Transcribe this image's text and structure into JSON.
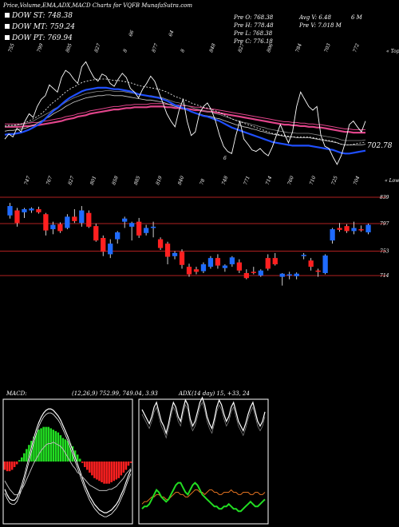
{
  "header": {
    "title": "Price,Volume,EMA,ADX,MACD Charts for VQFB MunafaSutra.com"
  },
  "legend": [
    {
      "label": "DOW ST:",
      "value": "748.38",
      "color": "#ffffff"
    },
    {
      "label": "DOW MT:",
      "value": "759.24",
      "color": "#ffffff"
    },
    {
      "label": "DOW PT:",
      "value": "769.94",
      "color": "#ffffff"
    }
  ],
  "stats": {
    "prev_open": "Pre  O: 768.38",
    "prev_high": "Pre  H: 778.48",
    "prev_low": "Pre  L: 768.38",
    "prev_close": "Pre  C: 776.18",
    "avg_volume": "Avg V: 6.48",
    "avg_volume_unit": "6  M",
    "prev_volume": "Pre  V: 7.018  M"
  },
  "colors": {
    "background": "#000000",
    "ema_short": "#1f4fff",
    "ema_long": "#e0448a",
    "price_line": "#ffffff",
    "bull_candle": "#1f6bff",
    "bear_candle": "#ff2020",
    "level_line": "#b02020",
    "macd_positive": "#22dd22",
    "macd_negative": "#ff2020",
    "adx_green": "#22dd22",
    "adx_orange": "#e07020"
  },
  "chart_data": [
    {
      "type": "line",
      "name": "price-ema-panel",
      "top_labels": [
        "755",
        "799",
        "805",
        "827",
        "8",
        "877",
        "8",
        "848",
        "827",
        "806",
        "784",
        "703",
        "772"
      ],
      "upper_labels": [
        "66",
        "64"
      ],
      "bottom_labels": [
        "747",
        "767",
        "827",
        "801",
        "858",
        "885",
        "819",
        "840",
        "78",
        "748",
        "771",
        "714",
        "760",
        "710",
        "725",
        "704"
      ],
      "price_tag": "702.78",
      "corner_top": "« Tops",
      "corner_bottom": "« Lows",
      "misc_label": "6",
      "x": [
        0,
        1,
        2,
        3,
        4,
        5,
        6,
        7,
        8,
        9,
        10,
        11,
        12,
        13,
        14,
        15,
        16,
        17,
        18,
        19,
        20,
        21,
        22,
        23,
        24,
        25,
        26,
        27,
        28,
        29,
        30,
        31,
        32,
        33,
        34,
        35,
        36,
        37,
        38,
        39,
        40,
        41,
        42,
        43,
        44,
        45,
        46,
        47,
        48,
        49,
        50,
        51,
        52,
        53,
        54,
        55,
        56,
        57,
        58,
        59,
        60,
        61,
        62,
        63,
        64,
        65,
        66,
        67,
        68,
        69,
        70,
        71,
        72,
        73,
        74,
        75,
        76,
        77,
        78,
        79,
        80,
        81,
        82,
        83,
        84,
        85,
        86,
        87,
        88,
        89
      ],
      "price": [
        735,
        742,
        738,
        750,
        745,
        760,
        770,
        765,
        780,
        790,
        795,
        810,
        805,
        800,
        820,
        830,
        826,
        818,
        812,
        835,
        842,
        830,
        820,
        815,
        825,
        822,
        812,
        808,
        818,
        826,
        820,
        805,
        800,
        792,
        804,
        812,
        822,
        815,
        800,
        785,
        770,
        760,
        752,
        775,
        790,
        760,
        740,
        745,
        770,
        780,
        785,
        775,
        760,
        740,
        725,
        718,
        715,
        740,
        760,
        735,
        728,
        720,
        718,
        722,
        716,
        712,
        724,
        740,
        755,
        742,
        730,
        745,
        780,
        800,
        790,
        780,
        775,
        780,
        740,
        725,
        722,
        710,
        700,
        712,
        730,
        755,
        760,
        752,
        745,
        760
      ],
      "ema_short": [
        741,
        742,
        742,
        743,
        744,
        746,
        748,
        751,
        754,
        758,
        763,
        769,
        774,
        778,
        783,
        788,
        792,
        795,
        798,
        801,
        803,
        804,
        805,
        806,
        806,
        806,
        805,
        804,
        804,
        803,
        802,
        801,
        799,
        797,
        796,
        795,
        794,
        793,
        792,
        790,
        788,
        785,
        782,
        780,
        778,
        776,
        773,
        771,
        769,
        767,
        766,
        764,
        762,
        760,
        757,
        754,
        751,
        749,
        747,
        745,
        743,
        741,
        739,
        737,
        735,
        733,
        731,
        730,
        729,
        728,
        727,
        726,
        726,
        726,
        726,
        726,
        725,
        724,
        723,
        722,
        721,
        720,
        718,
        716,
        715,
        715,
        716,
        717,
        718,
        719
      ],
      "ema_long": [
        752,
        752,
        752,
        752,
        752,
        753,
        753,
        754,
        754,
        755,
        756,
        757,
        758,
        759,
        760,
        762,
        763,
        764,
        766,
        767,
        768,
        770,
        771,
        772,
        773,
        774,
        775,
        776,
        776,
        777,
        778,
        778,
        779,
        779,
        779,
        779,
        780,
        780,
        780,
        780,
        779,
        779,
        778,
        778,
        777,
        777,
        776,
        775,
        775,
        774,
        773,
        773,
        772,
        771,
        770,
        769,
        768,
        767,
        766,
        765,
        764,
        763,
        762,
        761,
        760,
        759,
        758,
        757,
        756,
        755,
        755,
        754,
        754,
        753,
        753,
        752,
        752,
        751,
        751,
        750,
        749,
        748,
        747,
        746,
        745,
        745,
        744,
        744,
        744,
        744
      ],
      "ema_mid": [
        746,
        747,
        747,
        748,
        749,
        750,
        752,
        754,
        757,
        760,
        763,
        766,
        770,
        773,
        776,
        780,
        783,
        786,
        788,
        790,
        792,
        793,
        794,
        795,
        795,
        796,
        796,
        795,
        795,
        795,
        794,
        793,
        792,
        791,
        790,
        789,
        789,
        788,
        787,
        786,
        784,
        782,
        780,
        779,
        777,
        775,
        773,
        771,
        770,
        768,
        767,
        766,
        764,
        763,
        761,
        759,
        757,
        755,
        754,
        752,
        751,
        749,
        748,
        746,
        745,
        743,
        742,
        741,
        740,
        739,
        738,
        738,
        737,
        737,
        737,
        737,
        736,
        735,
        734,
        733,
        732,
        731,
        730,
        728,
        727,
        727,
        727,
        727,
        727,
        728
      ]
    },
    {
      "type": "bar",
      "name": "candlestick-panel",
      "levels": [
        839,
        797,
        753,
        714
      ],
      "ylim": [
        695,
        848
      ],
      "candles": [
        {
          "o": 810,
          "h": 830,
          "l": 805,
          "c": 825
        },
        {
          "o": 818,
          "h": 822,
          "l": 792,
          "c": 798
        },
        {
          "o": 815,
          "h": 822,
          "l": 806,
          "c": 820
        },
        {
          "o": 818,
          "h": 823,
          "l": 814,
          "c": 821
        },
        {
          "o": 820,
          "h": 824,
          "l": 813,
          "c": 815
        },
        {
          "o": 812,
          "h": 814,
          "l": 778,
          "c": 786
        },
        {
          "o": 788,
          "h": 800,
          "l": 780,
          "c": 795
        },
        {
          "o": 796,
          "h": 799,
          "l": 782,
          "c": 785
        },
        {
          "o": 790,
          "h": 812,
          "l": 788,
          "c": 808
        },
        {
          "o": 808,
          "h": 820,
          "l": 798,
          "c": 801
        },
        {
          "o": 798,
          "h": 825,
          "l": 792,
          "c": 818
        },
        {
          "o": 814,
          "h": 818,
          "l": 790,
          "c": 792
        },
        {
          "o": 793,
          "h": 797,
          "l": 768,
          "c": 770
        },
        {
          "o": 774,
          "h": 778,
          "l": 745,
          "c": 752
        },
        {
          "o": 748,
          "h": 772,
          "l": 742,
          "c": 765
        },
        {
          "o": 772,
          "h": 785,
          "l": 765,
          "c": 783
        },
        {
          "o": 800,
          "h": 808,
          "l": 790,
          "c": 805
        },
        {
          "o": 792,
          "h": 800,
          "l": 770,
          "c": 798
        },
        {
          "o": 800,
          "h": 806,
          "l": 774,
          "c": 778
        },
        {
          "o": 782,
          "h": 795,
          "l": 778,
          "c": 790
        },
        {
          "o": 790,
          "h": 800,
          "l": 775,
          "c": 792
        },
        {
          "o": 772,
          "h": 775,
          "l": 755,
          "c": 758
        },
        {
          "o": 765,
          "h": 768,
          "l": 732,
          "c": 744
        },
        {
          "o": 745,
          "h": 753,
          "l": 740,
          "c": 750
        },
        {
          "o": 752,
          "h": 756,
          "l": 725,
          "c": 731
        },
        {
          "o": 728,
          "h": 733,
          "l": 712,
          "c": 716
        },
        {
          "o": 724,
          "h": 728,
          "l": 716,
          "c": 720
        },
        {
          "o": 721,
          "h": 735,
          "l": 718,
          "c": 732
        },
        {
          "o": 728,
          "h": 745,
          "l": 725,
          "c": 742
        },
        {
          "o": 742,
          "h": 748,
          "l": 725,
          "c": 730
        },
        {
          "o": 726,
          "h": 732,
          "l": 720,
          "c": 730
        },
        {
          "o": 732,
          "h": 745,
          "l": 728,
          "c": 743
        },
        {
          "o": 735,
          "h": 740,
          "l": 718,
          "c": 722
        },
        {
          "o": 718,
          "h": 724,
          "l": 708,
          "c": 710
        },
        {
          "o": 720,
          "h": 728,
          "l": 716,
          "c": 719
        },
        {
          "o": 714,
          "h": 724,
          "l": 712,
          "c": 722
        },
        {
          "o": 742,
          "h": 748,
          "l": 722,
          "c": 725
        },
        {
          "o": 742,
          "h": 750,
          "l": 730,
          "c": 732
        },
        {
          "o": 712,
          "h": 718,
          "l": 698,
          "c": 717
        },
        {
          "o": 714,
          "h": 720,
          "l": 708,
          "c": 716
        },
        {
          "o": 713,
          "h": 719,
          "l": 708,
          "c": 717
        },
        {
          "o": 745,
          "h": 750,
          "l": 740,
          "c": 747
        },
        {
          "o": 738,
          "h": 742,
          "l": 722,
          "c": 728
        },
        {
          "o": 722,
          "h": 725,
          "l": 712,
          "c": 720
        },
        {
          "o": 718,
          "h": 748,
          "l": 716,
          "c": 746
        },
        {
          "o": 770,
          "h": 790,
          "l": 765,
          "c": 788
        },
        {
          "o": 790,
          "h": 798,
          "l": 784,
          "c": 787
        },
        {
          "o": 793,
          "h": 796,
          "l": 782,
          "c": 785
        },
        {
          "o": 785,
          "h": 800,
          "l": 780,
          "c": 790
        },
        {
          "o": 788,
          "h": 794,
          "l": 784,
          "c": 787
        },
        {
          "o": 783,
          "h": 797,
          "l": 780,
          "c": 795
        }
      ]
    },
    {
      "type": "bar",
      "name": "macd-panel",
      "title": "MACD:",
      "params": "(12,26,9) 752.99, 749.04, 3.93",
      "histogram": [
        -6,
        -7,
        -7,
        -6,
        -4,
        -2,
        1,
        3,
        6,
        9,
        12,
        15,
        18,
        21,
        23,
        24,
        25,
        25,
        25,
        24,
        23,
        22,
        21,
        19,
        17,
        16,
        15,
        13,
        11,
        8,
        5,
        2,
        -1,
        -4,
        -6,
        -8,
        -10,
        -12,
        -13,
        -14,
        -15,
        -16,
        -16,
        -16,
        -15,
        -14,
        -13,
        -12,
        -10,
        -8,
        -6,
        -3,
        -1
      ],
      "macd_line": [
        -20,
        -24,
        -27,
        -28,
        -28,
        -26,
        -22,
        -17,
        -11,
        -4,
        3,
        10,
        17,
        23,
        28,
        32,
        35,
        37,
        38,
        38,
        37,
        35,
        33,
        30,
        26,
        22,
        18,
        13,
        8,
        3,
        -2,
        -7,
        -12,
        -17,
        -21,
        -25,
        -28,
        -31,
        -33,
        -35,
        -36,
        -37,
        -37,
        -36,
        -35,
        -33,
        -31,
        -28,
        -24,
        -20,
        -15,
        -10,
        -6
      ],
      "signal_line": [
        -14,
        -17,
        -20,
        -22,
        -24,
        -24,
        -23,
        -20,
        -17,
        -13,
        -9,
        -5,
        -1,
        2,
        5,
        8,
        10,
        12,
        13,
        13,
        14,
        13,
        12,
        11,
        9,
        6,
        3,
        0,
        -3,
        -5,
        -8,
        -9,
        -11,
        -13,
        -15,
        -17,
        -18,
        -19,
        -20,
        -21,
        -21,
        -21,
        -21,
        -20,
        -20,
        -19,
        -18,
        -16,
        -14,
        -12,
        -9,
        -7,
        -5
      ],
      "ylim": [
        -45,
        45
      ]
    },
    {
      "type": "line",
      "name": "adx-panel",
      "title": "ADX",
      "params": "(14 day) 15, +33, 24",
      "plus_di": [
        32,
        30,
        28,
        26,
        29,
        33,
        35,
        31,
        27,
        25,
        22,
        26,
        31,
        35,
        33,
        29,
        27,
        32,
        36,
        34,
        28,
        25,
        27,
        31,
        35,
        37,
        34,
        29,
        26,
        24,
        28,
        33,
        36,
        34,
        30,
        27,
        29,
        33,
        35,
        31,
        27,
        25,
        23,
        26,
        30,
        33,
        35,
        31,
        27,
        25,
        27,
        31
      ],
      "minus_di": [
        18,
        20,
        22,
        24,
        21,
        17,
        15,
        19,
        23,
        25,
        28,
        24,
        19,
        15,
        17,
        21,
        23,
        18,
        14,
        16,
        22,
        25,
        23,
        19,
        15,
        13,
        16,
        21,
        24,
        26,
        22,
        17,
        14,
        16,
        20,
        23,
        21,
        17,
        15,
        19,
        23,
        25,
        27,
        24,
        20,
        17,
        15,
        19,
        23,
        25,
        23,
        19
      ],
      "adx_orange": [
        7,
        8,
        8,
        9,
        10,
        10,
        11,
        11,
        10,
        10,
        9,
        9,
        10,
        11,
        12,
        12,
        11,
        11,
        10,
        10,
        11,
        12,
        13,
        13,
        12,
        12,
        11,
        12,
        13,
        13,
        12,
        12,
        11,
        11,
        12,
        12,
        12,
        13,
        12,
        12,
        11,
        11,
        12,
        12,
        12,
        11,
        11,
        12,
        12,
        11,
        11,
        12
      ],
      "adx_green": [
        5,
        6,
        6,
        7,
        9,
        11,
        13,
        12,
        10,
        9,
        8,
        9,
        11,
        13,
        15,
        16,
        16,
        14,
        12,
        11,
        13,
        15,
        16,
        15,
        13,
        11,
        10,
        9,
        8,
        7,
        6,
        6,
        5,
        5,
        6,
        6,
        7,
        6,
        5,
        5,
        4,
        4,
        5,
        6,
        7,
        8,
        7,
        6,
        6,
        7,
        8,
        9
      ],
      "ylim": [
        0,
        50
      ]
    }
  ]
}
